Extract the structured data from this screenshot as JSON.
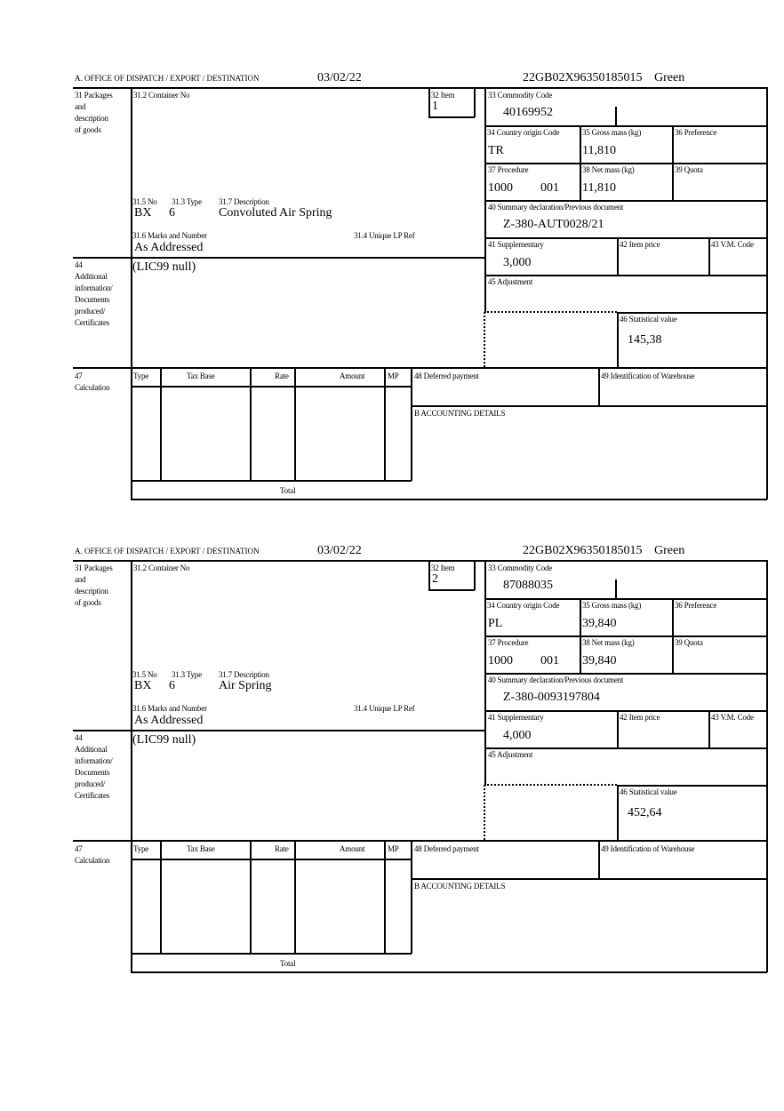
{
  "labels": {
    "office": "A.  OFFICE OF DISPATCH / EXPORT / DESTINATION",
    "box31": [
      "31 Packages",
      "and",
      "description",
      "of goods"
    ],
    "container_no": "31.2 Container No",
    "item": "32 Item",
    "no": "31.5 No",
    "type": "31.3 Type",
    "description": "31.7 Description",
    "marks": "31.6 Marks and Number",
    "unique_lp_ref": "31.4 Unique LP Ref",
    "commodity_code": "33 Commodity Code",
    "country_origin": "34 Country origin Code",
    "gross_mass": "35 Gross mass (kg)",
    "preference": "36 Preference",
    "procedure": "37 Procedure",
    "net_mass": "38 Net mass (kg)",
    "quota": "39 Quota",
    "summary_declaration": "40 Summary declaration/Previous document",
    "supplementary": "41 Supplementary",
    "item_price": "42 Item price",
    "vm_code": "43 V.M. Code",
    "adjustment": "45 Adjustment",
    "statistical_value": "46 Statistical value",
    "box44": [
      "44",
      "Additional",
      "information/",
      "Documents",
      "produced/",
      "Certificates"
    ],
    "box47": [
      "47",
      "Calculation"
    ],
    "calc_columns": [
      "Type",
      "Tax Base",
      "Rate",
      "Amount",
      "MP"
    ],
    "total": "Total",
    "deferred_payment": "48 Deferred payment",
    "warehouse": "49 Identification of Warehouse",
    "accounting": "B ACCOUNTING DETAILS"
  },
  "forms": [
    {
      "date": "03/02/22",
      "reference": "22GB02X96350185015",
      "route": "Green",
      "item": "1",
      "package_kind": "BX",
      "package_count": "6",
      "description": "Convoluted Air Spring",
      "marks": "As Addressed",
      "additional_info": "(LIC99 null)",
      "commodity_code": "40169952",
      "country_origin": "TR",
      "gross_mass": "11,810",
      "procedure": "1000",
      "procedure_additional": "001",
      "net_mass": "11,810",
      "previous_document": "Z-380-AUT0028/21",
      "supplementary": "3,000",
      "statistical_value": "145,38"
    },
    {
      "date": "03/02/22",
      "reference": "22GB02X96350185015",
      "route": "Green",
      "item": "2",
      "package_kind": "BX",
      "package_count": "6",
      "description": "Air Spring",
      "marks": "As Addressed",
      "additional_info": "(LIC99 null)",
      "commodity_code": "87088035",
      "country_origin": "PL",
      "gross_mass": "39,840",
      "procedure": "1000",
      "procedure_additional": "001",
      "net_mass": "39,840",
      "previous_document": "Z-380-0093197804",
      "supplementary": "4,000",
      "statistical_value": "452,64"
    }
  ]
}
